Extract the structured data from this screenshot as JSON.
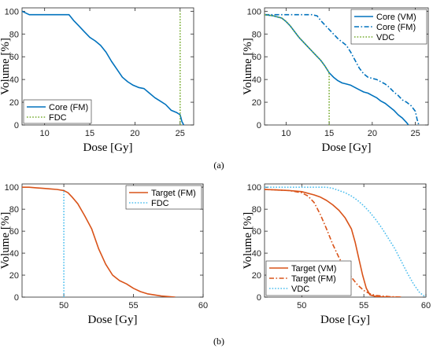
{
  "figure": {
    "panel_labels": [
      "(a)",
      "(b)"
    ]
  },
  "chart_data": [
    {
      "type": "line",
      "xlabel": "Dose [Gy]",
      "ylabel": "Volume [%]",
      "xlim": [
        7.5,
        26.5
      ],
      "ylim": [
        0,
        103
      ],
      "xticks": [
        10,
        15,
        20,
        25
      ],
      "yticks": [
        0,
        20,
        40,
        60,
        80,
        100
      ],
      "grid": false,
      "legend_position": "bottom-left",
      "series": [
        {
          "name": "Core (FM)",
          "color": "#0072BD",
          "style": "solid",
          "x": [
            7.5,
            8.3,
            9,
            10,
            11,
            12,
            12.7,
            13.2,
            13.8,
            14.4,
            15,
            15.6,
            16.2,
            16.8,
            17.4,
            18,
            18.6,
            19.2,
            19.8,
            20.4,
            21,
            21.6,
            22.2,
            22.8,
            23.4,
            24,
            24.6,
            25,
            25.2,
            25.4
          ],
          "y": [
            100,
            97,
            97,
            97,
            97,
            97,
            97,
            92,
            87,
            82,
            77,
            74,
            70,
            64,
            56,
            49,
            42,
            38,
            35,
            33,
            32,
            28,
            24,
            21,
            18,
            13,
            11,
            9,
            3,
            0
          ]
        },
        {
          "name": "FDC",
          "color": "#77AC30",
          "style": "dotted",
          "x": [
            25,
            25
          ],
          "y": [
            0,
            100
          ]
        }
      ]
    },
    {
      "type": "line",
      "xlabel": "Dose [Gy]",
      "ylabel": "Volume [%]",
      "xlim": [
        7.5,
        26.5
      ],
      "ylim": [
        0,
        103
      ],
      "xticks": [
        10,
        15,
        20,
        25
      ],
      "yticks": [
        0,
        20,
        40,
        60,
        80,
        100
      ],
      "grid": false,
      "legend_position": "top-right",
      "series": [
        {
          "name": "Core (VM)",
          "color": "#0072BD",
          "style": "solid",
          "x": [
            7.5,
            8.5,
            9.5,
            10,
            10.5,
            11,
            11.5,
            12,
            12.5,
            13,
            13.5,
            14,
            14.5,
            15,
            15.5,
            16,
            16.5,
            17,
            17.5,
            18,
            18.5,
            19,
            19.5,
            20,
            20.5,
            21,
            21.5,
            22,
            22.5,
            23,
            23.5,
            24,
            24.2
          ],
          "y": [
            97,
            96,
            94,
            91,
            87,
            82,
            77,
            73,
            69,
            65,
            61,
            57,
            52,
            46,
            42,
            39,
            37,
            36,
            35,
            33,
            31,
            29,
            28,
            26,
            24,
            21,
            19,
            16,
            13,
            9,
            6,
            2,
            0
          ]
        },
        {
          "name": "Core (FM)",
          "color": "#0072BD",
          "style": "dashdot",
          "x": [
            7.5,
            9,
            11,
            13,
            13.6,
            14,
            14.5,
            15,
            15.5,
            16,
            16.5,
            17,
            17.5,
            18,
            18.5,
            19,
            19.5,
            20,
            20.5,
            21,
            21.5,
            22,
            22.5,
            23,
            23.5,
            24,
            24.5,
            25,
            25.2,
            25.4
          ],
          "y": [
            97,
            97,
            97,
            97,
            96,
            92,
            88,
            84,
            80,
            76,
            73,
            70,
            64,
            57,
            50,
            45,
            42,
            41,
            40,
            38,
            36,
            33,
            29,
            26,
            22,
            20,
            17,
            12,
            5,
            0
          ]
        },
        {
          "name": "VDC",
          "color": "#77AC30",
          "style": "dotted",
          "x": [
            7.5,
            8.5,
            9.5,
            10,
            10.5,
            11,
            11.5,
            12,
            12.5,
            13,
            13.5,
            14,
            14.5,
            15,
            15,
            15
          ],
          "y": [
            97,
            96,
            94,
            91,
            87,
            82,
            77,
            73,
            69,
            65,
            61,
            57,
            52,
            46,
            46,
            0
          ]
        }
      ]
    },
    {
      "type": "line",
      "xlabel": "Dose [Gy]",
      "ylabel": "Volume [%]",
      "xlim": [
        47,
        60
      ],
      "ylim": [
        0,
        103
      ],
      "xticks": [
        50,
        55,
        60
      ],
      "yticks": [
        0,
        20,
        40,
        60,
        80,
        100
      ],
      "grid": false,
      "legend_position": "top-right",
      "series": [
        {
          "name": "Target (FM)",
          "color": "#D95319",
          "style": "solid",
          "x": [
            47,
            47.5,
            48,
            48.5,
            49,
            49.5,
            50,
            50.3,
            50.6,
            51,
            51.5,
            52,
            52.5,
            53,
            53.5,
            54,
            54.5,
            55,
            55.5,
            56,
            56.5,
            57,
            57.5,
            58
          ],
          "y": [
            100,
            100,
            99.5,
            99,
            98.5,
            98,
            97,
            95,
            91,
            85,
            74,
            62,
            44,
            30,
            20,
            15,
            12,
            8,
            5,
            3,
            2,
            1,
            0.5,
            0
          ]
        },
        {
          "name": "FDC",
          "color": "#4DBEEE",
          "style": "dotted",
          "x": [
            50,
            50
          ],
          "y": [
            0,
            98
          ]
        }
      ]
    },
    {
      "type": "line",
      "xlabel": "Dose [Gy]",
      "ylabel": "Volume [%]",
      "xlim": [
        47,
        60
      ],
      "ylim": [
        0,
        103
      ],
      "xticks": [
        50,
        55,
        60
      ],
      "yticks": [
        0,
        20,
        40,
        60,
        80,
        100
      ],
      "grid": false,
      "legend_position": "bottom-left",
      "series": [
        {
          "name": "Target (VM)",
          "color": "#D95319",
          "style": "solid",
          "x": [
            47,
            48,
            49,
            50,
            51,
            51.5,
            52,
            52.5,
            53,
            53.5,
            54,
            54.3,
            54.6,
            54.9,
            55.2,
            55.5,
            56,
            57,
            58
          ],
          "y": [
            98,
            97.5,
            97,
            96,
            93,
            91,
            88,
            84,
            79,
            72,
            62,
            50,
            35,
            20,
            8,
            2,
            0.5,
            0,
            0
          ]
        },
        {
          "name": "Target (FM)",
          "color": "#D95319",
          "style": "dashdot",
          "x": [
            47,
            48,
            49,
            50,
            50.5,
            51,
            51.5,
            52,
            52.5,
            53,
            53.5,
            54,
            54.5,
            55,
            55.5,
            56,
            56.5,
            57,
            58
          ],
          "y": [
            98,
            97.5,
            97,
            95,
            92,
            86,
            75,
            62,
            48,
            36,
            26,
            18,
            11,
            6,
            3,
            1.5,
            1,
            0.5,
            0
          ]
        },
        {
          "name": "VDC",
          "color": "#4DBEEE",
          "style": "dotted",
          "x": [
            47,
            48,
            49,
            50,
            51,
            52,
            52.5,
            53,
            53.5,
            54,
            54.5,
            55,
            55.5,
            56,
            56.5,
            57,
            57.5,
            58,
            58.5,
            59,
            59.5,
            60
          ],
          "y": [
            100,
            100,
            100,
            100,
            100,
            100,
            99,
            97,
            95,
            92,
            88,
            83,
            77,
            70,
            62,
            53,
            44,
            33,
            22,
            12,
            4,
            0
          ]
        }
      ]
    }
  ]
}
